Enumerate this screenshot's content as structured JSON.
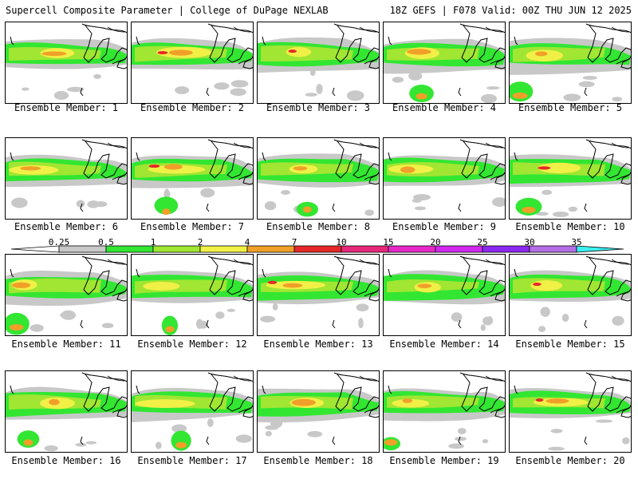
{
  "header": {
    "title": "Supercell Composite Parameter | College of DuPage NEXLAB",
    "run_info": "18Z GEFS | F078 Valid: 00Z THU JUN 12 2025"
  },
  "panels": [
    {
      "label": "Ensemble Member: 1",
      "member": 1
    },
    {
      "label": "Ensemble Member: 2",
      "member": 2
    },
    {
      "label": "Ensemble Member: 3",
      "member": 3
    },
    {
      "label": "Ensemble Member: 4",
      "member": 4
    },
    {
      "label": "Ensemble Member: 5",
      "member": 5
    },
    {
      "label": "Ensemble Member: 6",
      "member": 6
    },
    {
      "label": "Ensemble Member: 7",
      "member": 7
    },
    {
      "label": "Ensemble Member: 8",
      "member": 8
    },
    {
      "label": "Ensemble Member: 9",
      "member": 9
    },
    {
      "label": "Ensemble Member: 10",
      "member": 10
    },
    {
      "label": "Ensemble Member: 11",
      "member": 11
    },
    {
      "label": "Ensemble Member: 12",
      "member": 12
    },
    {
      "label": "Ensemble Member: 13",
      "member": 13
    },
    {
      "label": "Ensemble Member: 14",
      "member": 14
    },
    {
      "label": "Ensemble Member: 15",
      "member": 15
    },
    {
      "label": "Ensemble Member: 16",
      "member": 16
    },
    {
      "label": "Ensemble Member: 17",
      "member": 17
    },
    {
      "label": "Ensemble Member: 18",
      "member": 18
    },
    {
      "label": "Ensemble Member: 19",
      "member": 19
    },
    {
      "label": "Ensemble Member: 20",
      "member": 20
    }
  ],
  "legend": {
    "levels": [
      "0.25",
      "0.5",
      "1",
      "2",
      "4",
      "7",
      "10",
      "15",
      "20",
      "25",
      "30",
      "35"
    ],
    "colors": [
      "#c8c8c8",
      "#32e632",
      "#a0e632",
      "#f0f046",
      "#f0a028",
      "#e62828",
      "#e6287a",
      "#e628c8",
      "#d228f0",
      "#8c28f0",
      "#b46ee6",
      "#3cf0f0"
    ]
  },
  "colors": {
    "gray": "#c8c8c8",
    "green": "#32e632",
    "lightgreen": "#a0e632",
    "yellow": "#f0f046",
    "orange": "#f0a028",
    "red": "#e62828"
  }
}
